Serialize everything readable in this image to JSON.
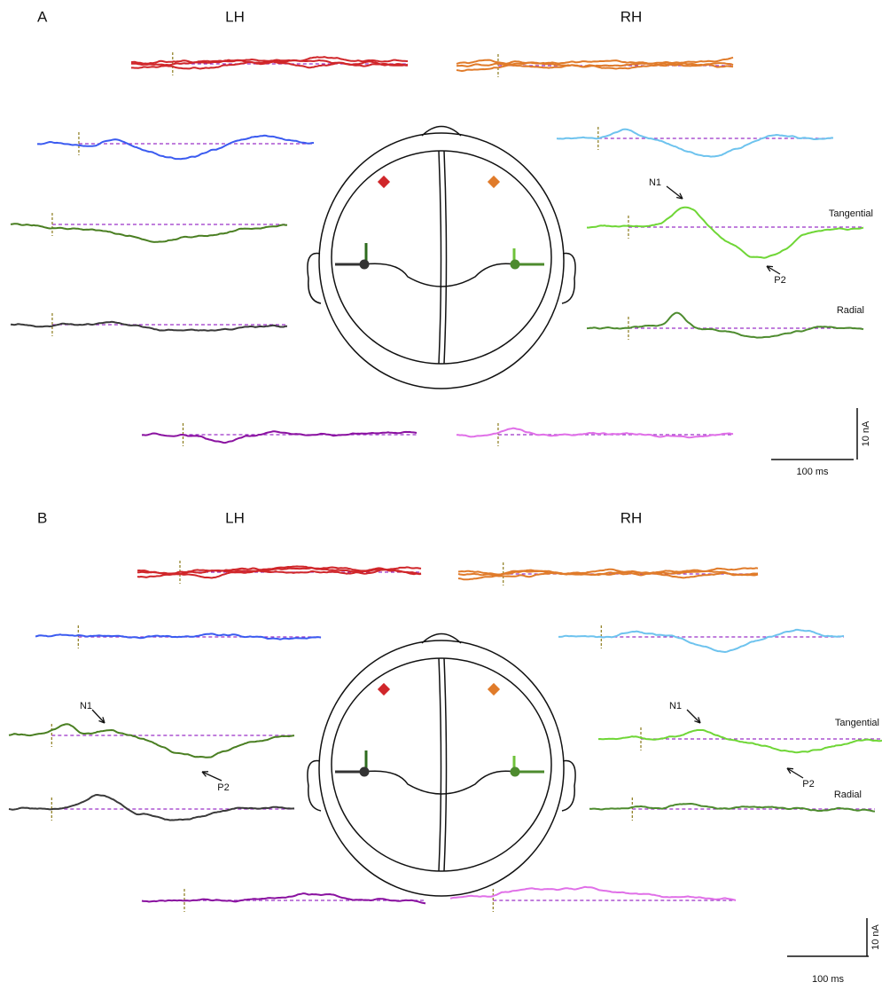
{
  "panels": [
    {
      "label": "A",
      "left": "LH",
      "right": "RH",
      "annotations": [
        "N1",
        "P2",
        "Tangential",
        "Radial"
      ],
      "scale": {
        "amplitude": "10 nA",
        "time": "100 ms"
      }
    },
    {
      "label": "B",
      "left": "LH",
      "right": "RH",
      "annotations": [
        "N1",
        "P2",
        "N1",
        "P2",
        "Tangential",
        "Radial"
      ],
      "scale": {
        "amplitude": "10 nA",
        "time": "100 ms"
      }
    }
  ]
}
